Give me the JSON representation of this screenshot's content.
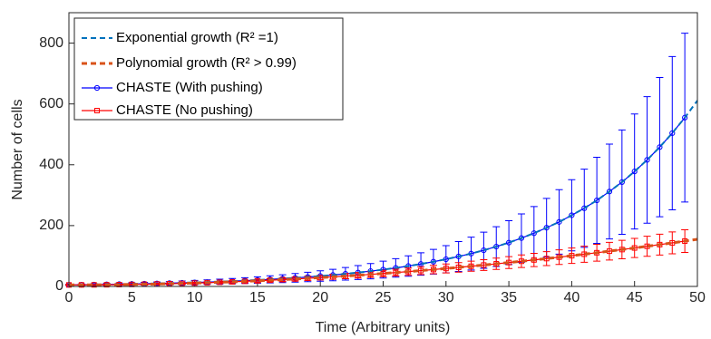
{
  "chart_data": {
    "type": "line",
    "xlabel": "Time (Arbitrary units)",
    "ylabel": "Number of cells",
    "xlim": [
      0,
      50
    ],
    "ylim": [
      0,
      900
    ],
    "xticks": [
      0,
      5,
      10,
      15,
      20,
      25,
      30,
      35,
      40,
      45,
      50
    ],
    "yticks": [
      0,
      200,
      400,
      600,
      800
    ],
    "legend_position": "upper-left",
    "series": [
      {
        "name": "Exponential growth (R² =1)",
        "color": "#0072bd",
        "style": "dashed",
        "x": [
          0,
          1,
          2,
          3,
          4,
          5,
          6,
          7,
          8,
          9,
          10,
          11,
          12,
          13,
          14,
          15,
          16,
          17,
          18,
          19,
          20,
          21,
          22,
          23,
          24,
          25,
          26,
          27,
          28,
          29,
          30,
          31,
          32,
          33,
          34,
          35,
          36,
          37,
          38,
          39,
          40,
          41,
          42,
          43,
          44,
          45,
          46,
          47,
          48,
          49,
          50
        ],
        "values": [
          5,
          5.5,
          6.06,
          6.67,
          7.34,
          8.08,
          8.9,
          9.8,
          10.8,
          11.9,
          13.1,
          14.4,
          15.8,
          17.4,
          19.2,
          21.1,
          23.3,
          25.6,
          28.2,
          31,
          34.2,
          37.6,
          41.4,
          45.6,
          50.2,
          55.3,
          60.8,
          67,
          73.7,
          81.2,
          89.4,
          98.4,
          108,
          119,
          131,
          144,
          159,
          175,
          193,
          212,
          234,
          257,
          283,
          312,
          343,
          378,
          416,
          458,
          504,
          555,
          611
        ]
      },
      {
        "name": "Polynomial growth (R² > 0.99)",
        "color": "#d95319",
        "style": "dashed",
        "x": [
          0,
          1,
          2,
          3,
          4,
          5,
          6,
          7,
          8,
          9,
          10,
          11,
          12,
          13,
          14,
          15,
          16,
          17,
          18,
          19,
          20,
          21,
          22,
          23,
          24,
          25,
          26,
          27,
          28,
          29,
          30,
          31,
          32,
          33,
          34,
          35,
          36,
          37,
          38,
          39,
          40,
          41,
          42,
          43,
          44,
          45,
          46,
          47,
          48,
          49,
          50
        ],
        "values": [
          5,
          5.1,
          5.2,
          5.5,
          6,
          6.5,
          7.2,
          7.9,
          8.8,
          9.9,
          11,
          12.3,
          13.6,
          15.1,
          16.8,
          18.5,
          20.4,
          22.3,
          24.4,
          26.7,
          29,
          31.5,
          34,
          36.7,
          39.6,
          42.5,
          45.6,
          48.7,
          52,
          55.5,
          59,
          62.7,
          66.4,
          70.3,
          74.4,
          78.5,
          82.8,
          87.1,
          91.6,
          96.3,
          101,
          105.9,
          110.8,
          115.9,
          121.2,
          126.5,
          132,
          137.5,
          143.2,
          149.1,
          155
        ]
      },
      {
        "name": "CHASTE (With pushing)",
        "color": "#0000ff",
        "style": "solid",
        "marker": "circle",
        "x": [
          0,
          1,
          2,
          3,
          4,
          5,
          6,
          7,
          8,
          9,
          10,
          11,
          12,
          13,
          14,
          15,
          16,
          17,
          18,
          19,
          20,
          21,
          22,
          23,
          24,
          25,
          26,
          27,
          28,
          29,
          30,
          31,
          32,
          33,
          34,
          35,
          36,
          37,
          38,
          39,
          40,
          41,
          42,
          43,
          44,
          45,
          46,
          47,
          48,
          49
        ],
        "values": [
          5,
          5.5,
          6.06,
          6.67,
          7.34,
          8.08,
          8.9,
          9.8,
          10.8,
          11.9,
          13.1,
          14.4,
          15.8,
          17.4,
          19.2,
          21.1,
          23.3,
          25.6,
          28.2,
          31,
          34.2,
          37.6,
          41.4,
          45.6,
          50.2,
          55.3,
          60.8,
          67,
          73.7,
          81.2,
          89.4,
          98.4,
          108,
          119,
          131,
          144,
          159,
          175,
          193,
          212,
          234,
          257,
          283,
          312,
          343,
          378,
          416,
          458,
          504,
          555
        ],
        "errors": [
          2.5,
          2.8,
          3,
          3.3,
          3.7,
          4,
          4.5,
          4.9,
          5.4,
          6,
          6.6,
          7.2,
          7.9,
          8.7,
          9.6,
          10.6,
          11.7,
          12.8,
          14.1,
          15.5,
          17.1,
          18.8,
          20.7,
          22.8,
          25.1,
          27.7,
          30.4,
          33.5,
          36.9,
          40.6,
          44.7,
          49.2,
          54,
          59.5,
          65.5,
          72,
          79.5,
          87.5,
          96.5,
          106,
          117,
          128.5,
          141.5,
          156,
          171.5,
          189,
          208,
          229,
          252,
          277.5
        ]
      },
      {
        "name": "CHASTE (No pushing)",
        "color": "#ff0000",
        "style": "solid",
        "marker": "square",
        "x": [
          0,
          1,
          2,
          3,
          4,
          5,
          6,
          7,
          8,
          9,
          10,
          11,
          12,
          13,
          14,
          15,
          16,
          17,
          18,
          19,
          20,
          21,
          22,
          23,
          24,
          25,
          26,
          27,
          28,
          29,
          30,
          31,
          32,
          33,
          34,
          35,
          36,
          37,
          38,
          39,
          40,
          41,
          42,
          43,
          44,
          45,
          46,
          47,
          48,
          49
        ],
        "values": [
          5,
          5.1,
          5.2,
          5.5,
          6,
          6.5,
          7.2,
          7.9,
          8.8,
          9.9,
          11,
          12.3,
          13.6,
          15.1,
          16.8,
          18.5,
          20.4,
          22.3,
          24.4,
          26.7,
          29,
          31.5,
          34,
          36.7,
          39.6,
          42.5,
          45.6,
          48.7,
          52,
          55.5,
          59,
          62.7,
          66.4,
          70.3,
          74.4,
          78.5,
          82.8,
          87.1,
          91.6,
          96.3,
          101,
          105.9,
          110.8,
          115.9,
          121.2,
          126.5,
          132,
          137.5,
          143.2,
          149.1
        ],
        "errors": [
          1.3,
          1.3,
          1.3,
          1.4,
          1.5,
          1.6,
          1.8,
          2,
          2.2,
          2.5,
          2.8,
          3.1,
          3.4,
          3.8,
          4.2,
          4.6,
          5.1,
          5.6,
          6.1,
          6.7,
          7.3,
          7.9,
          8.5,
          9.2,
          9.9,
          10.6,
          11.4,
          12.2,
          13,
          13.9,
          14.8,
          15.7,
          16.6,
          17.6,
          18.6,
          19.6,
          20.7,
          21.8,
          22.9,
          24.1,
          25.3,
          26.5,
          27.7,
          29,
          30.3,
          31.6,
          33,
          34.4,
          35.8,
          37.3
        ]
      }
    ]
  }
}
